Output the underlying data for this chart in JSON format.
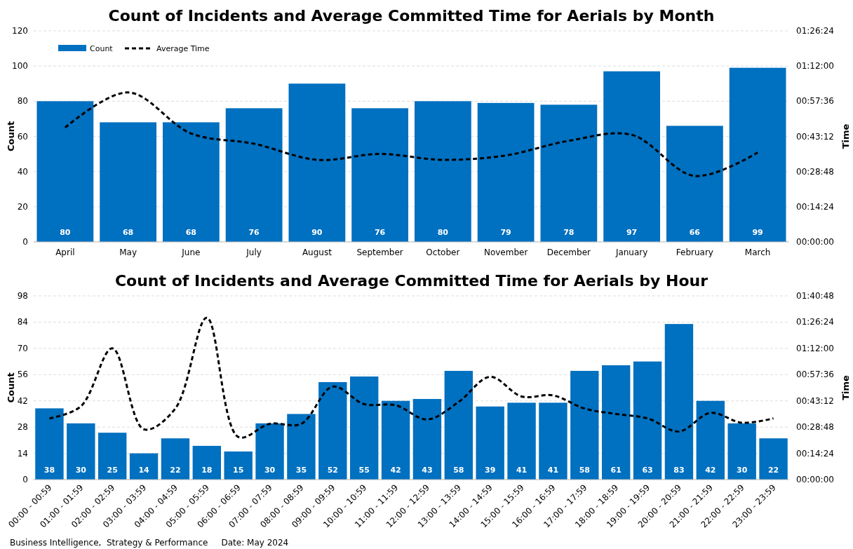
{
  "chart_data": [
    {
      "type": "bar",
      "title": "Count of Incidents and Average Committed Time for Aerials by Month",
      "ylabel": "Count",
      "y2label": "Time",
      "categories": [
        "April",
        "May",
        "June",
        "July",
        "August",
        "September",
        "October",
        "November",
        "December",
        "January",
        "February",
        "March"
      ],
      "series": [
        {
          "name": "Count",
          "color": "#0070c0",
          "values": [
            80,
            68,
            68,
            76,
            90,
            76,
            80,
            79,
            78,
            97,
            66,
            99
          ],
          "value_labels": [
            "80",
            "68",
            "68",
            "76",
            "90",
            "76",
            "80",
            "79",
            "78",
            "97",
            "66",
            "99"
          ]
        },
        {
          "name": "Average Time",
          "type": "line",
          "axis": "y2",
          "color": "#000000",
          "line_style": "dashed",
          "values": [
            0.78,
            1.02,
            0.74,
            0.67,
            0.56,
            0.6,
            0.56,
            0.59,
            0.69,
            0.73,
            0.45,
            0.61
          ]
        }
      ],
      "ylim": [
        0,
        120
      ],
      "yticks": [
        0,
        20,
        40,
        60,
        80,
        100,
        120
      ],
      "y2lim": [
        0,
        1.44
      ],
      "y2ticks": [
        {
          "value": 0,
          "label": "00:00:00"
        },
        {
          "value": 0.24,
          "label": "00:14:24"
        },
        {
          "value": 0.48,
          "label": "00:28:48"
        },
        {
          "value": 0.72,
          "label": "00:43:12"
        },
        {
          "value": 0.96,
          "label": "00:57:36"
        },
        {
          "value": 1.2,
          "label": "01:12:00"
        },
        {
          "value": 1.44,
          "label": "01:26:24"
        }
      ],
      "grid": "y",
      "legend": "top left"
    },
    {
      "type": "bar",
      "title": "Count of Incidents and Average Committed Time for Aerials by Hour",
      "ylabel": "Count",
      "y2label": "Time",
      "categories": [
        "00:00 - 00:59",
        "01:00 - 01:59",
        "02:00 - 02:59",
        "03:00 - 03:59",
        "04:00 - 04:59",
        "05:00 - 05:59",
        "06:00 - 06:59",
        "07:00 - 07:59",
        "08:00 - 08:59",
        "09:00 - 09:59",
        "10:00 - 10:59",
        "11:00 - 11:59",
        "12:00 - 12:59",
        "13:00 - 13:59",
        "14:00 - 14:59",
        "15:00 - 15:59",
        "16:00 - 16:59",
        "17:00 - 17:59",
        "18:00 - 18:59",
        "19:00 - 19:59",
        "20:00 - 20:59",
        "21:00 - 21:59",
        "22:00 - 22:59",
        "23:00 - 23:59"
      ],
      "series": [
        {
          "color": "#0070c0",
          "values": [
            38,
            30,
            25,
            14,
            22,
            18,
            15,
            30,
            35,
            52,
            55,
            42,
            43,
            58,
            39,
            41,
            41,
            58,
            61,
            63,
            83,
            42,
            30,
            22
          ],
          "value_labels": [
            "38",
            "30",
            "25",
            "14",
            "22",
            "18",
            "15",
            "30",
            "35",
            "52",
            "55",
            "42",
            "43",
            "58",
            "39",
            "41",
            "41",
            "58",
            "61",
            "63",
            "83",
            "42",
            "30",
            "22"
          ]
        },
        {
          "type": "line",
          "axis": "y2",
          "color": "#000000",
          "line_style": "dashed",
          "values": [
            0.56,
            0.67,
            1.2,
            0.46,
            0.65,
            1.48,
            0.39,
            0.51,
            0.51,
            0.85,
            0.69,
            0.68,
            0.55,
            0.71,
            0.94,
            0.76,
            0.77,
            0.65,
            0.6,
            0.56,
            0.44,
            0.61,
            0.52,
            0.56
          ]
        }
      ],
      "ylim": [
        0,
        98
      ],
      "yticks": [
        0,
        14,
        28,
        42,
        56,
        70,
        84,
        98
      ],
      "y2lim": [
        0,
        1.68
      ],
      "y2ticks": [
        {
          "value": 0,
          "label": "00:00:00"
        },
        {
          "value": 0.24,
          "label": "00:14:24"
        },
        {
          "value": 0.48,
          "label": "00:28:48"
        },
        {
          "value": 0.72,
          "label": "00:43:12"
        },
        {
          "value": 0.96,
          "label": "00:57:36"
        },
        {
          "value": 1.2,
          "label": "01:12:00"
        },
        {
          "value": 1.44,
          "label": "01:26:24"
        },
        {
          "value": 1.68,
          "label": "01:40:48"
        }
      ],
      "grid": "y",
      "legend": false,
      "annotations": [
        "Business Intelligence,  Strategy & Performance     Date: May 2024"
      ]
    }
  ]
}
